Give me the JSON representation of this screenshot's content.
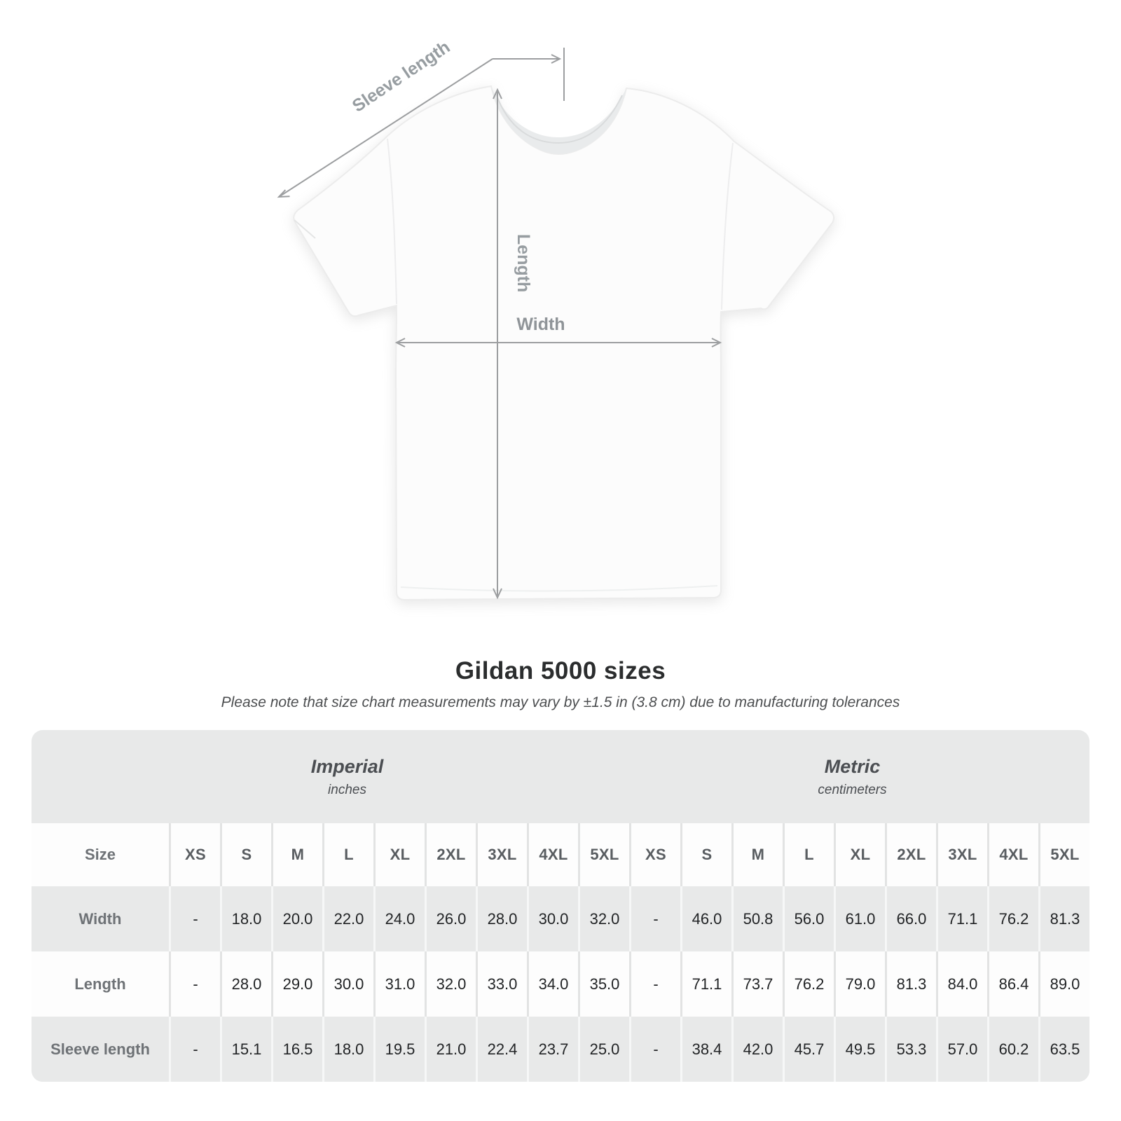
{
  "diagram": {
    "labels": {
      "sleeve_length": "Sleeve length",
      "length": "Length",
      "width": "Width"
    },
    "line_color": "#9c9ea0",
    "label_color": "#979da1",
    "shirt_color": "#fcfcfc"
  },
  "header": {
    "title": "Gildan 5000 sizes",
    "subtitle": "Please note that size chart measurements may vary by ±1.5 in (3.8 cm) due to manufacturing tolerances"
  },
  "table": {
    "groups": [
      {
        "label": "Imperial",
        "sublabel": "inches"
      },
      {
        "label": "Metric",
        "sublabel": "centimeters"
      }
    ],
    "size_header": "Size",
    "sizes": [
      "XS",
      "S",
      "M",
      "L",
      "XL",
      "2XL",
      "3XL",
      "4XL",
      "5XL"
    ],
    "rows": [
      {
        "label": "Width",
        "imperial": [
          "-",
          "18.0",
          "20.0",
          "22.0",
          "24.0",
          "26.0",
          "28.0",
          "30.0",
          "32.0"
        ],
        "metric": [
          "-",
          "46.0",
          "50.8",
          "56.0",
          "61.0",
          "66.0",
          "71.1",
          "76.2",
          "81.3"
        ]
      },
      {
        "label": "Length",
        "imperial": [
          "-",
          "28.0",
          "29.0",
          "30.0",
          "31.0",
          "32.0",
          "33.0",
          "34.0",
          "35.0"
        ],
        "metric": [
          "-",
          "71.1",
          "73.7",
          "76.2",
          "79.0",
          "81.3",
          "84.0",
          "86.4",
          "89.0"
        ]
      },
      {
        "label": "Sleeve length",
        "imperial": [
          "-",
          "15.1",
          "16.5",
          "18.0",
          "19.5",
          "21.0",
          "22.4",
          "23.7",
          "25.0"
        ],
        "metric": [
          "-",
          "38.4",
          "42.0",
          "45.7",
          "49.5",
          "53.3",
          "57.0",
          "60.2",
          "63.5"
        ]
      }
    ]
  },
  "chart_data": {
    "type": "table",
    "title": "Gildan 5000 sizes",
    "subtitle": "Please note that size chart measurements may vary by ±1.5 in (3.8 cm) due to manufacturing tolerances",
    "unit_groups": [
      {
        "name": "Imperial",
        "unit": "inches"
      },
      {
        "name": "Metric",
        "unit": "centimeters"
      }
    ],
    "columns": [
      "XS",
      "S",
      "M",
      "L",
      "XL",
      "2XL",
      "3XL",
      "4XL",
      "5XL"
    ],
    "measurements": [
      {
        "name": "Width",
        "imperial_in": [
          null,
          18.0,
          20.0,
          22.0,
          24.0,
          26.0,
          28.0,
          30.0,
          32.0
        ],
        "metric_cm": [
          null,
          46.0,
          50.8,
          56.0,
          61.0,
          66.0,
          71.1,
          76.2,
          81.3
        ]
      },
      {
        "name": "Length",
        "imperial_in": [
          null,
          28.0,
          29.0,
          30.0,
          31.0,
          32.0,
          33.0,
          34.0,
          35.0
        ],
        "metric_cm": [
          null,
          71.1,
          73.7,
          76.2,
          79.0,
          81.3,
          84.0,
          86.4,
          89.0
        ]
      },
      {
        "name": "Sleeve length",
        "imperial_in": [
          null,
          15.1,
          16.5,
          18.0,
          19.5,
          21.0,
          22.4,
          23.7,
          25.0
        ],
        "metric_cm": [
          null,
          38.4,
          42.0,
          45.7,
          49.5,
          53.3,
          57.0,
          60.2,
          63.5
        ]
      }
    ],
    "tolerance_note": "±1.5 in (3.8 cm)"
  },
  "colors": {
    "card_background": "#e8e9e9",
    "row_white": "#fdfdfd",
    "value_text": "#222426",
    "label_text": "#6e7276",
    "title_text": "#2b2d2e"
  }
}
